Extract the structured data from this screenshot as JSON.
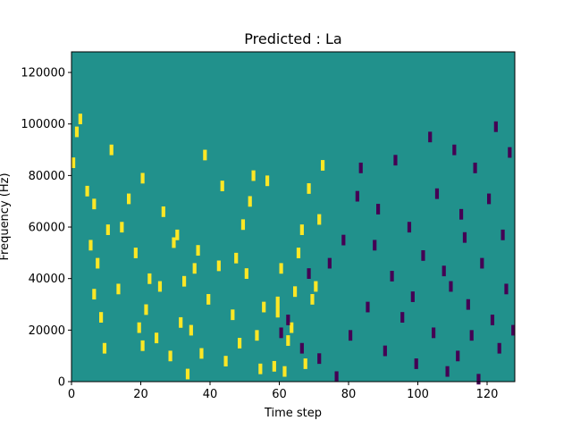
{
  "chart_data": {
    "type": "heatmap",
    "title": "Predicted : La",
    "xlabel": "Time step",
    "ylabel": "Frequency (Hz)",
    "xlim": [
      0,
      128
    ],
    "ylim": [
      0,
      128000
    ],
    "x_ticks": [
      0,
      20,
      40,
      60,
      80,
      100,
      120
    ],
    "y_ticks": [
      0,
      20000,
      40000,
      60000,
      80000,
      100000,
      120000
    ],
    "x_tick_labels": [
      "0",
      "20",
      "40",
      "60",
      "80",
      "100",
      "120"
    ],
    "y_tick_labels": [
      "0",
      "20000",
      "40000",
      "60000",
      "80000",
      "100000",
      "120000"
    ],
    "grid": false,
    "legend": "none",
    "value_levels": [
      -1,
      0,
      1
    ],
    "colormap": {
      "-1": "#440154",
      "0": "#21918c",
      "1": "#fde725"
    },
    "background_value": 0,
    "cells": [
      [
        0,
        86,
        1
      ],
      [
        1,
        98,
        1
      ],
      [
        2,
        103,
        1
      ],
      [
        4,
        75,
        1
      ],
      [
        5,
        54,
        1
      ],
      [
        6,
        35,
        1
      ],
      [
        6,
        70,
        1
      ],
      [
        7,
        47,
        1
      ],
      [
        8,
        26,
        1
      ],
      [
        9,
        14,
        1
      ],
      [
        10,
        60,
        1
      ],
      [
        11,
        91,
        1
      ],
      [
        13,
        37,
        1
      ],
      [
        14,
        61,
        1
      ],
      [
        16,
        72,
        1
      ],
      [
        18,
        51,
        1
      ],
      [
        19,
        22,
        1
      ],
      [
        20,
        15,
        1
      ],
      [
        20,
        80,
        1
      ],
      [
        21,
        29,
        1
      ],
      [
        22,
        41,
        1
      ],
      [
        24,
        18,
        1
      ],
      [
        25,
        38,
        1
      ],
      [
        26,
        67,
        1
      ],
      [
        28,
        11,
        1
      ],
      [
        29,
        55,
        1
      ],
      [
        30,
        58,
        1
      ],
      [
        31,
        24,
        1
      ],
      [
        32,
        40,
        1
      ],
      [
        33,
        4,
        1
      ],
      [
        34,
        21,
        1
      ],
      [
        35,
        45,
        1
      ],
      [
        36,
        52,
        1
      ],
      [
        37,
        12,
        1
      ],
      [
        38,
        89,
        1
      ],
      [
        39,
        33,
        1
      ],
      [
        42,
        46,
        1
      ],
      [
        43,
        77,
        1
      ],
      [
        44,
        9,
        1
      ],
      [
        46,
        27,
        1
      ],
      [
        47,
        49,
        1
      ],
      [
        48,
        16,
        1
      ],
      [
        49,
        62,
        1
      ],
      [
        50,
        43,
        1
      ],
      [
        51,
        71,
        1
      ],
      [
        52,
        81,
        1
      ],
      [
        53,
        19,
        1
      ],
      [
        54,
        6,
        1
      ],
      [
        55,
        30,
        1
      ],
      [
        56,
        79,
        1
      ],
      [
        58,
        7,
        1
      ],
      [
        59,
        28,
        1
      ],
      [
        59,
        32,
        1
      ],
      [
        60,
        45,
        1
      ],
      [
        61,
        5,
        1
      ],
      [
        62,
        17,
        1
      ],
      [
        63,
        22,
        1
      ],
      [
        64,
        36,
        1
      ],
      [
        65,
        51,
        1
      ],
      [
        66,
        60,
        1
      ],
      [
        67,
        8,
        1
      ],
      [
        68,
        76,
        1
      ],
      [
        69,
        33,
        1
      ],
      [
        70,
        38,
        1
      ],
      [
        71,
        64,
        1
      ],
      [
        72,
        85,
        1
      ],
      [
        60,
        20,
        -1
      ],
      [
        62,
        25,
        -1
      ],
      [
        66,
        14,
        -1
      ],
      [
        68,
        43,
        -1
      ],
      [
        71,
        10,
        -1
      ],
      [
        74,
        47,
        -1
      ],
      [
        76,
        3,
        -1
      ],
      [
        78,
        56,
        -1
      ],
      [
        80,
        19,
        -1
      ],
      [
        82,
        73,
        -1
      ],
      [
        83,
        84,
        -1
      ],
      [
        85,
        30,
        -1
      ],
      [
        87,
        54,
        -1
      ],
      [
        88,
        68,
        -1
      ],
      [
        90,
        13,
        -1
      ],
      [
        92,
        42,
        -1
      ],
      [
        93,
        87,
        -1
      ],
      [
        95,
        26,
        -1
      ],
      [
        97,
        61,
        -1
      ],
      [
        98,
        34,
        -1
      ],
      [
        99,
        8,
        -1
      ],
      [
        101,
        50,
        -1
      ],
      [
        103,
        96,
        -1
      ],
      [
        104,
        20,
        -1
      ],
      [
        105,
        74,
        -1
      ],
      [
        107,
        44,
        -1
      ],
      [
        108,
        5,
        -1
      ],
      [
        109,
        38,
        -1
      ],
      [
        110,
        91,
        -1
      ],
      [
        111,
        11,
        -1
      ],
      [
        112,
        66,
        -1
      ],
      [
        113,
        57,
        -1
      ],
      [
        114,
        31,
        -1
      ],
      [
        115,
        19,
        -1
      ],
      [
        116,
        84,
        -1
      ],
      [
        117,
        2,
        -1
      ],
      [
        118,
        47,
        -1
      ],
      [
        120,
        72,
        -1
      ],
      [
        121,
        25,
        -1
      ],
      [
        122,
        100,
        -1
      ],
      [
        123,
        14,
        -1
      ],
      [
        124,
        58,
        -1
      ],
      [
        125,
        37,
        -1
      ],
      [
        126,
        90,
        -1
      ],
      [
        127,
        21,
        -1
      ]
    ]
  }
}
